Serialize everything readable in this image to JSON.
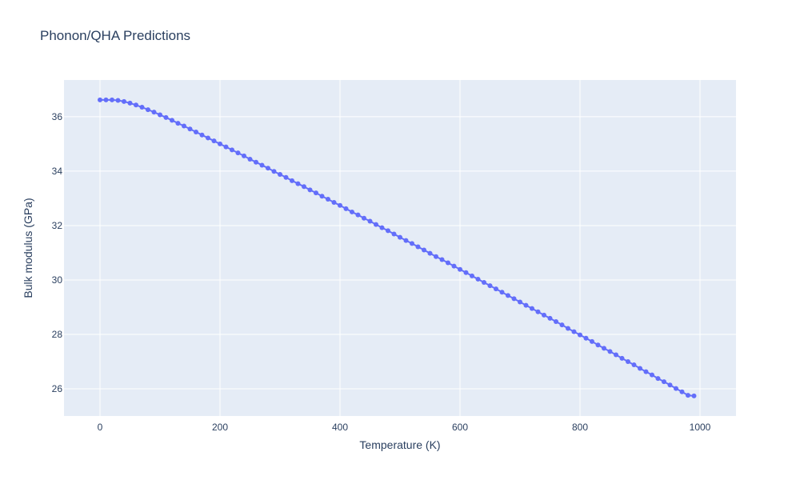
{
  "chart_data": {
    "type": "line",
    "title": "Phonon/QHA Predictions",
    "xlabel": "Temperature (K)",
    "ylabel": "Bulk modulus (GPa)",
    "xlim": [
      -60,
      1060
    ],
    "ylim": [
      25.0,
      37.35
    ],
    "xticks": [
      0,
      200,
      400,
      600,
      800,
      1000
    ],
    "yticks": [
      26,
      28,
      30,
      32,
      34,
      36
    ],
    "grid": true,
    "legend": "none",
    "colors": {
      "series": "#636efa",
      "plot_bg": "#e5ecf6",
      "text": "#2a3f5f"
    },
    "series": [
      {
        "mode": "lines+markers",
        "x": [
          0,
          10,
          20,
          30,
          40,
          50,
          60,
          70,
          80,
          90,
          100,
          110,
          120,
          130,
          140,
          150,
          160,
          170,
          180,
          190,
          200,
          210,
          220,
          230,
          240,
          250,
          260,
          270,
          280,
          290,
          300,
          310,
          320,
          330,
          340,
          350,
          360,
          370,
          380,
          390,
          400,
          410,
          420,
          430,
          440,
          450,
          460,
          470,
          480,
          490,
          500,
          510,
          520,
          530,
          540,
          550,
          560,
          570,
          580,
          590,
          600,
          610,
          620,
          630,
          640,
          650,
          660,
          670,
          680,
          690,
          700,
          710,
          720,
          730,
          740,
          750,
          760,
          770,
          780,
          790,
          800,
          810,
          820,
          830,
          840,
          850,
          860,
          870,
          880,
          890,
          900,
          910,
          920,
          930,
          940,
          950,
          960,
          970,
          980,
          990
        ],
        "y": [
          36.62,
          36.62,
          36.62,
          36.6,
          36.56,
          36.5,
          36.43,
          36.35,
          36.26,
          36.17,
          36.07,
          35.97,
          35.87,
          35.76,
          35.66,
          35.55,
          35.44,
          35.33,
          35.22,
          35.11,
          35.0,
          34.89,
          34.78,
          34.67,
          34.56,
          34.44,
          34.33,
          34.22,
          34.11,
          33.99,
          33.88,
          33.77,
          33.65,
          33.54,
          33.43,
          33.31,
          33.2,
          33.08,
          32.97,
          32.85,
          32.74,
          32.62,
          32.5,
          32.39,
          32.27,
          32.16,
          32.04,
          31.92,
          31.81,
          31.69,
          31.57,
          31.45,
          31.34,
          31.22,
          31.1,
          30.98,
          30.86,
          30.75,
          30.63,
          30.51,
          30.39,
          30.27,
          30.15,
          30.03,
          29.91,
          29.79,
          29.67,
          29.55,
          29.43,
          29.31,
          29.19,
          29.07,
          28.95,
          28.83,
          28.71,
          28.59,
          28.47,
          28.35,
          28.22,
          28.1,
          27.98,
          27.86,
          27.74,
          27.61,
          27.49,
          27.37,
          27.25,
          27.12,
          27.0,
          26.88,
          26.75,
          26.63,
          26.51,
          26.38,
          26.26,
          26.14,
          26.01,
          25.89,
          25.76,
          25.74
        ]
      }
    ]
  }
}
